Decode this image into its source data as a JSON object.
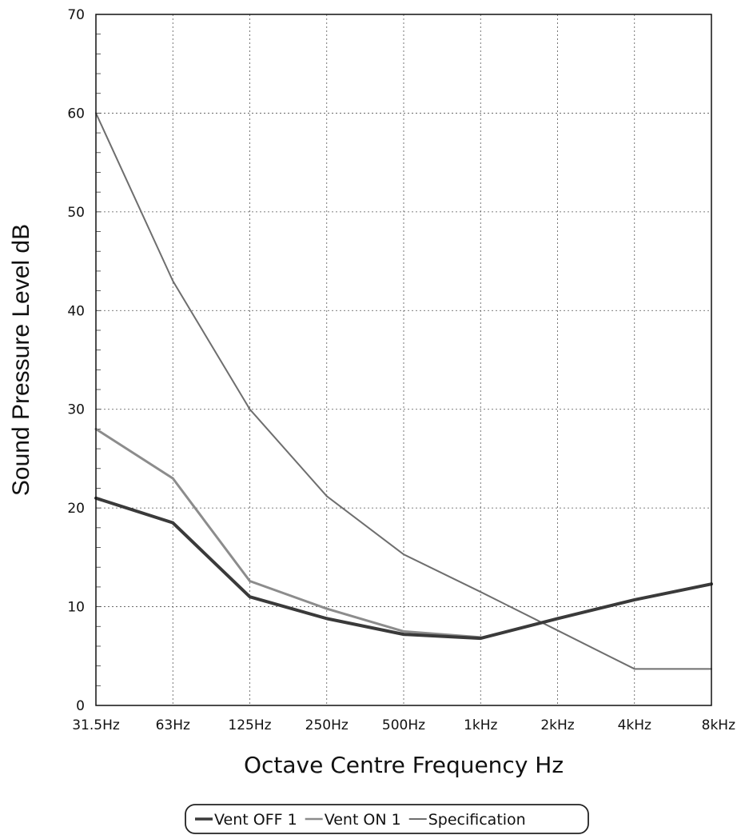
{
  "chart_data": {
    "type": "line",
    "xlabel": "Octave Centre Frequency Hz",
    "ylabel": "Sound Pressure Level dB",
    "categories": [
      "31.5Hz",
      "63Hz",
      "125Hz",
      "250Hz",
      "500Hz",
      "1kHz",
      "2kHz",
      "4kHz",
      "8kHz"
    ],
    "ylim": [
      0,
      70
    ],
    "yticks": [
      0,
      10,
      20,
      30,
      40,
      50,
      60,
      70
    ],
    "grid": true,
    "legend_position": "bottom",
    "series": [
      {
        "name": "Vent OFF 1",
        "color": "#3a3a3a",
        "width": 4,
        "values": [
          21,
          18.5,
          11,
          8.8,
          7.2,
          6.8,
          8.8,
          10.7,
          12.3
        ]
      },
      {
        "name": "Vent ON 1",
        "color": "#8c8c8c",
        "width": 3,
        "values": [
          28,
          23,
          12.6,
          9.8,
          7.5,
          6.9,
          null,
          null,
          null
        ]
      },
      {
        "name": "Specification",
        "color": "#6e6e6e",
        "width": 2,
        "values": [
          60,
          43,
          30,
          21.2,
          15.3,
          11.5,
          7.6,
          3.7,
          3.7
        ]
      }
    ]
  }
}
